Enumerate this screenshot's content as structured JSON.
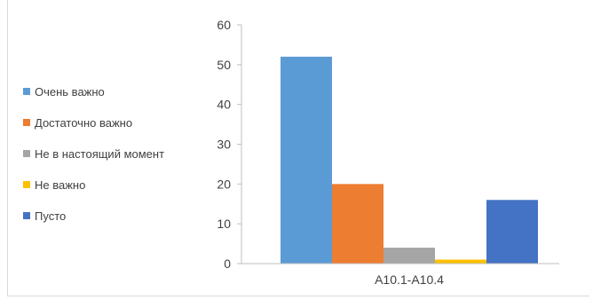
{
  "chart_data": {
    "type": "bar",
    "categories": [
      "A10.1-A10.4"
    ],
    "ylim": [
      0,
      60
    ],
    "yticks": [
      0,
      10,
      20,
      30,
      40,
      50,
      60
    ],
    "grid": false,
    "legend_position": "left",
    "series": [
      {
        "name": "Очень важно",
        "values": [
          52
        ],
        "color": "#5b9bd5"
      },
      {
        "name": "Достаточно важно",
        "values": [
          20
        ],
        "color": "#ed7d31"
      },
      {
        "name": "Не в настоящий момент",
        "values": [
          4
        ],
        "color": "#a5a5a5"
      },
      {
        "name": "Не важно",
        "values": [
          1
        ],
        "color": "#ffc000"
      },
      {
        "name": "Пусто",
        "values": [
          16
        ],
        "color": "#4472c4"
      }
    ]
  }
}
